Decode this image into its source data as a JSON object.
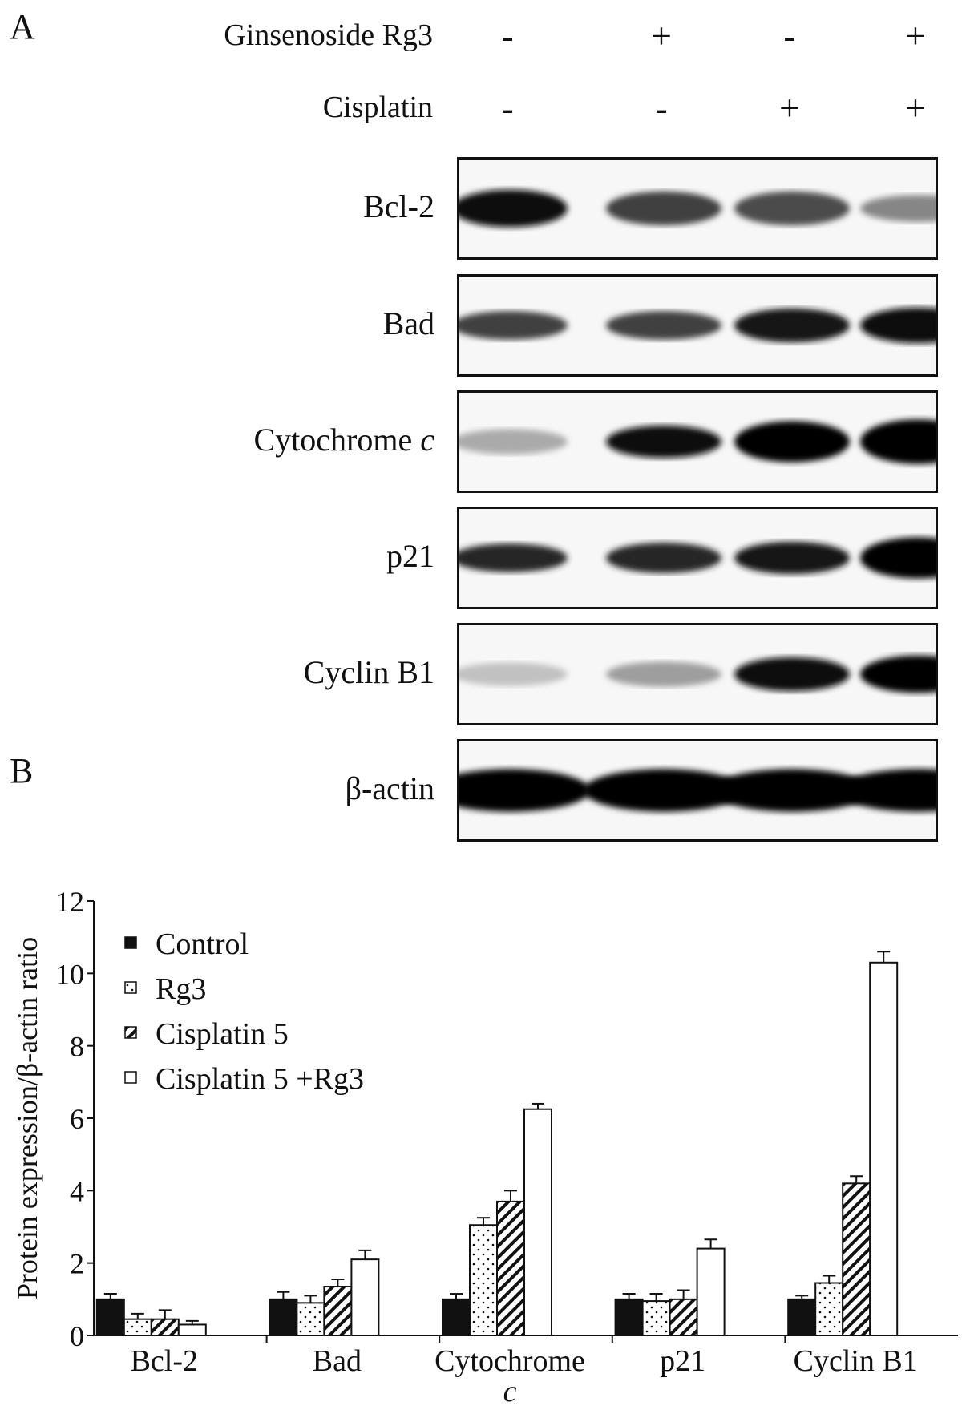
{
  "panel_a": {
    "letter": "A",
    "conditions": [
      {
        "label": "Ginsenoside Rg3",
        "signs": [
          "-",
          "+",
          "-",
          "+"
        ]
      },
      {
        "label": "Cisplatin",
        "signs": [
          "-",
          "-",
          "+",
          "+"
        ]
      }
    ],
    "blots": [
      {
        "label": "Bcl-2",
        "label_italic_part": "",
        "intensity": [
          0.95,
          0.75,
          0.7,
          0.45
        ],
        "thickness": [
          0.7,
          0.6,
          0.6,
          0.4
        ]
      },
      {
        "label": "Bad",
        "label_italic_part": "",
        "intensity": [
          0.75,
          0.75,
          0.92,
          0.95
        ],
        "thickness": [
          0.45,
          0.45,
          0.6,
          0.65
        ]
      },
      {
        "label": "Cytochrome ",
        "label_italic_part": "c",
        "intensity": [
          0.3,
          0.95,
          1.0,
          1.0
        ],
        "thickness": [
          0.35,
          0.55,
          0.8,
          0.9
        ]
      },
      {
        "label": "p21",
        "label_italic_part": "",
        "intensity": [
          0.85,
          0.85,
          0.92,
          1.0
        ],
        "thickness": [
          0.45,
          0.5,
          0.55,
          0.8
        ]
      },
      {
        "label": "Cyclin B1",
        "label_italic_part": "",
        "intensity": [
          0.2,
          0.35,
          0.95,
          1.0
        ],
        "thickness": [
          0.3,
          0.35,
          0.6,
          0.7
        ]
      },
      {
        "label": "β-actin",
        "label_italic_part": "",
        "intensity": [
          1.0,
          1.0,
          1.0,
          1.0
        ],
        "thickness": [
          0.85,
          0.85,
          0.85,
          0.85
        ]
      }
    ]
  },
  "panel_b": {
    "letter": "B"
  },
  "chart_data": {
    "type": "bar",
    "title": "",
    "xlabel": "",
    "ylabel": "Protein expression/β-actin ratio",
    "ylim": [
      0,
      12
    ],
    "yticks": [
      "0",
      "2",
      "4",
      "6",
      "8",
      "10",
      "12"
    ],
    "categories": [
      "Bcl-2",
      "Bad",
      "Cytochrome\nc",
      "p21",
      "Cyclin B1"
    ],
    "legend_position": "top-left",
    "grid": false,
    "series": [
      {
        "name": "Control",
        "fill": "solid-black",
        "values": [
          1.0,
          1.0,
          1.0,
          1.0,
          1.0
        ],
        "errors": [
          0.15,
          0.2,
          0.15,
          0.15,
          0.1
        ]
      },
      {
        "name": "Rg3",
        "fill": "dotted",
        "values": [
          0.45,
          0.9,
          3.05,
          0.95,
          1.45
        ],
        "errors": [
          0.15,
          0.2,
          0.2,
          0.2,
          0.2
        ]
      },
      {
        "name": "Cisplatin 5",
        "fill": "diagonal-hatch",
        "values": [
          0.45,
          1.35,
          3.7,
          1.0,
          4.2
        ],
        "errors": [
          0.25,
          0.2,
          0.3,
          0.25,
          0.2
        ]
      },
      {
        "name": "Cisplatin 5 +Rg3",
        "fill": "white",
        "values": [
          0.3,
          2.1,
          6.25,
          2.4,
          10.3
        ],
        "errors": [
          0.1,
          0.25,
          0.15,
          0.25,
          0.3
        ]
      }
    ]
  }
}
